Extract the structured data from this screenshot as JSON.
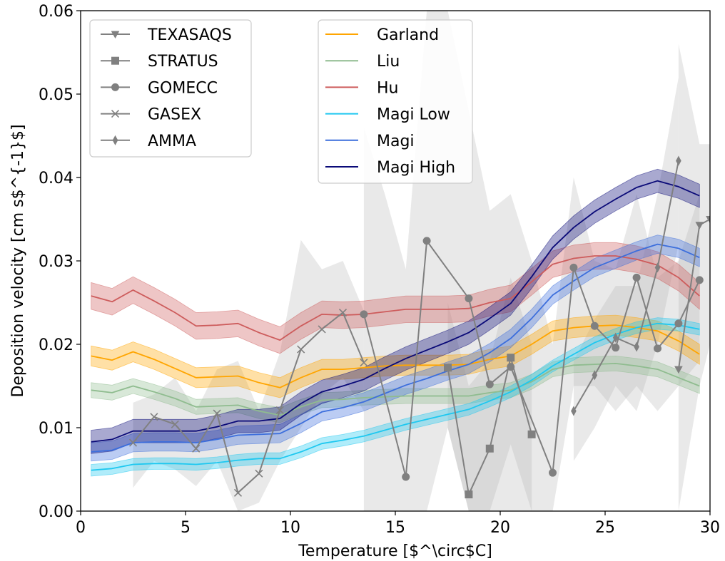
{
  "chart_data": {
    "type": "line",
    "xlabel": "Temperature [$^\\circ$C]",
    "ylabel": "Deposition velocity [cm s$^{-1}$]",
    "xlim": [
      0,
      30
    ],
    "ylim": [
      0,
      0.06
    ],
    "xticks": [
      "0",
      "5",
      "10",
      "15",
      "20",
      "25",
      "30"
    ],
    "yticks": [
      "0.00",
      "0.01",
      "0.02",
      "0.03",
      "0.04",
      "0.05",
      "0.06"
    ],
    "grid": false,
    "legend_placement": [
      "top-left",
      "top-center"
    ],
    "model_series": [
      {
        "name": "Garland",
        "color": "#ffa500",
        "x": [
          0.5,
          1.5,
          2.5,
          3.5,
          4.5,
          5.5,
          6.5,
          7.5,
          8.5,
          9.5,
          10.5,
          11.5,
          12.5,
          13.5,
          14.5,
          15.5,
          16.5,
          17.5,
          18.5,
          19.5,
          20.5,
          21.5,
          22.5,
          23.5,
          24.5,
          25.5,
          26.5,
          27.5,
          28.5,
          29.5
        ],
        "y": [
          0.0186,
          0.0181,
          0.0191,
          0.0182,
          0.0171,
          0.016,
          0.0161,
          0.0162,
          0.0154,
          0.0148,
          0.016,
          0.017,
          0.017,
          0.0172,
          0.0174,
          0.0175,
          0.0175,
          0.0175,
          0.0176,
          0.0182,
          0.0186,
          0.02,
          0.0216,
          0.022,
          0.0222,
          0.0223,
          0.022,
          0.0216,
          0.0204,
          0.0188
        ],
        "band": 0.0012
      },
      {
        "name": "Liu",
        "color": "#8fbc8f",
        "x": [
          0.5,
          1.5,
          2.5,
          3.5,
          4.5,
          5.5,
          6.5,
          7.5,
          8.5,
          9.5,
          10.5,
          11.5,
          12.5,
          13.5,
          14.5,
          15.5,
          16.5,
          17.5,
          18.5,
          19.5,
          20.5,
          21.5,
          22.5,
          23.5,
          24.5,
          25.5,
          26.5,
          27.5,
          28.5,
          29.5
        ],
        "y": [
          0.0145,
          0.0142,
          0.015,
          0.0143,
          0.0135,
          0.0125,
          0.0126,
          0.0127,
          0.012,
          0.0115,
          0.0125,
          0.0133,
          0.0134,
          0.0136,
          0.0137,
          0.0138,
          0.0138,
          0.0138,
          0.0138,
          0.0142,
          0.0145,
          0.0155,
          0.017,
          0.0175,
          0.0176,
          0.0177,
          0.0174,
          0.017,
          0.016,
          0.015
        ],
        "band": 0.0009
      },
      {
        "name": "Hu",
        "color": "#cd5c5c",
        "x": [
          0.5,
          1.5,
          2.5,
          3.5,
          4.5,
          5.5,
          6.5,
          7.5,
          8.5,
          9.5,
          10.5,
          11.5,
          12.5,
          13.5,
          14.5,
          15.5,
          16.5,
          17.5,
          18.5,
          19.5,
          20.5,
          21.5,
          22.5,
          23.5,
          24.5,
          25.5,
          26.5,
          27.5,
          28.5,
          29.5
        ],
        "y": [
          0.0258,
          0.0251,
          0.0265,
          0.0252,
          0.0238,
          0.0222,
          0.0223,
          0.0225,
          0.0214,
          0.0205,
          0.0222,
          0.0236,
          0.0235,
          0.0236,
          0.0239,
          0.0242,
          0.0242,
          0.0242,
          0.0243,
          0.025,
          0.0255,
          0.0275,
          0.0296,
          0.0303,
          0.0306,
          0.0306,
          0.0302,
          0.0295,
          0.028,
          0.0258
        ],
        "band": 0.0016
      },
      {
        "name": "Magi Low",
        "color": "#1ec8f0",
        "x": [
          0.5,
          1.5,
          2.5,
          3.5,
          4.5,
          5.5,
          6.5,
          7.5,
          8.5,
          9.5,
          10.5,
          11.5,
          12.5,
          13.5,
          14.5,
          15.5,
          16.5,
          17.5,
          18.5,
          19.5,
          20.5,
          21.5,
          22.5,
          23.5,
          24.5,
          25.5,
          26.5,
          27.5,
          28.5,
          29.5
        ],
        "y": [
          0.0049,
          0.0051,
          0.0056,
          0.0057,
          0.0057,
          0.0056,
          0.0058,
          0.0061,
          0.0063,
          0.0063,
          0.0071,
          0.0081,
          0.0085,
          0.009,
          0.0097,
          0.0104,
          0.011,
          0.0116,
          0.0122,
          0.0132,
          0.0143,
          0.0157,
          0.0174,
          0.0188,
          0.0202,
          0.0212,
          0.022,
          0.0225,
          0.0223,
          0.0218
        ],
        "band": 0.0007
      },
      {
        "name": "Magi",
        "color": "#3c6edc",
        "x": [
          0.5,
          1.5,
          2.5,
          3.5,
          4.5,
          5.5,
          6.5,
          7.5,
          8.5,
          9.5,
          10.5,
          11.5,
          12.5,
          13.5,
          14.5,
          15.5,
          16.5,
          17.5,
          18.5,
          19.5,
          20.5,
          21.5,
          22.5,
          23.5,
          24.5,
          25.5,
          26.5,
          27.5,
          28.5,
          29.5
        ],
        "y": [
          0.0071,
          0.0073,
          0.0082,
          0.0083,
          0.0083,
          0.0082,
          0.0086,
          0.0091,
          0.0092,
          0.0093,
          0.0105,
          0.0119,
          0.0124,
          0.0131,
          0.0141,
          0.0151,
          0.0159,
          0.0168,
          0.0176,
          0.019,
          0.0207,
          0.0231,
          0.0259,
          0.0276,
          0.0292,
          0.0302,
          0.0312,
          0.032,
          0.0315,
          0.0304
        ],
        "band": 0.0011
      },
      {
        "name": "Magi High",
        "color": "#0a0a78",
        "x": [
          0.5,
          1.5,
          2.5,
          3.5,
          4.5,
          5.5,
          6.5,
          7.5,
          8.5,
          9.5,
          10.5,
          11.5,
          12.5,
          13.5,
          14.5,
          15.5,
          16.5,
          17.5,
          18.5,
          19.5,
          20.5,
          21.5,
          22.5,
          23.5,
          24.5,
          25.5,
          26.5,
          27.5,
          28.5,
          29.5
        ],
        "y": [
          0.0083,
          0.0086,
          0.0096,
          0.0096,
          0.0096,
          0.0096,
          0.0101,
          0.0108,
          0.0108,
          0.0111,
          0.0129,
          0.0143,
          0.015,
          0.0158,
          0.0171,
          0.0183,
          0.0193,
          0.0203,
          0.0214,
          0.0231,
          0.0249,
          0.0281,
          0.0316,
          0.034,
          0.0359,
          0.0374,
          0.0388,
          0.0396,
          0.0389,
          0.0378
        ],
        "band": 0.0014
      }
    ],
    "obs_series": [
      {
        "name": "TEXASAQS",
        "marker": "triangle-down",
        "color": "#808080",
        "x": [
          28.5,
          29.5,
          30.0
        ],
        "y": [
          0.017,
          0.0343,
          0.035
        ],
        "shade": [
          [
            28.5,
            0.0,
            0.056
          ],
          [
            29.5,
            0.015,
            0.044
          ],
          [
            30.0,
            0.02,
            0.044
          ]
        ]
      },
      {
        "name": "STRATUS",
        "marker": "square",
        "color": "#808080",
        "x": [
          17.5,
          18.5,
          19.5,
          20.5,
          21.5
        ],
        "y": [
          0.0172,
          0.002,
          0.0075,
          0.0184,
          0.0092
        ],
        "shade": [
          [
            17.5,
            0.01,
            0.025
          ],
          [
            18.5,
            0.0,
            0.015
          ],
          [
            19.5,
            0.0,
            0.018
          ],
          [
            20.5,
            0.008,
            0.028
          ],
          [
            21.5,
            0.0,
            0.02
          ]
        ]
      },
      {
        "name": "GOMECC",
        "marker": "circle",
        "color": "#808080",
        "x": [
          13.5,
          15.5,
          16.5,
          18.5,
          19.5,
          20.5,
          22.5,
          23.5,
          24.5,
          25.5,
          26.5,
          27.5,
          28.5,
          29.5
        ],
        "y": [
          0.0236,
          0.0041,
          0.0324,
          0.0255,
          0.0152,
          0.0173,
          0.0046,
          0.0292,
          0.0222,
          0.0196,
          0.028,
          0.0195,
          0.0225,
          0.0277
        ],
        "shade": [
          [
            13.5,
            0.0,
            0.046
          ],
          [
            14.5,
            0.0,
            0.038
          ],
          [
            15.5,
            0.0,
            0.029
          ],
          [
            16.5,
            0.0,
            0.06
          ],
          [
            17.5,
            0.01,
            0.06
          ],
          [
            18.5,
            0.0,
            0.048
          ],
          [
            19.5,
            0.0,
            0.036
          ],
          [
            20.5,
            0.0,
            0.038
          ],
          [
            21.5,
            0.0,
            0.03
          ],
          [
            22.5,
            0.0,
            0.02
          ],
          [
            23.5,
            0.015,
            0.04
          ],
          [
            24.5,
            0.015,
            0.03
          ],
          [
            25.5,
            0.012,
            0.029
          ],
          [
            26.5,
            0.015,
            0.038
          ],
          [
            27.5,
            0.012,
            0.028
          ],
          [
            28.5,
            0.015,
            0.03
          ],
          [
            29.5,
            0.018,
            0.038
          ]
        ]
      },
      {
        "name": "GASEX",
        "marker": "x",
        "color": "#808080",
        "x": [
          2.5,
          3.5,
          4.5,
          5.5,
          6.5,
          7.5,
          8.5,
          9.5,
          10.5,
          11.5,
          12.5,
          13.5
        ],
        "y": [
          0.0082,
          0.0113,
          0.0104,
          0.0075,
          0.0117,
          0.0022,
          0.0045,
          0.0121,
          0.0194,
          0.0218,
          0.0238,
          0.0178
        ],
        "shade": [
          [
            2.5,
            0.0028,
            0.013
          ],
          [
            3.5,
            0.006,
            0.014
          ],
          [
            4.5,
            0.005,
            0.016
          ],
          [
            5.5,
            0.003,
            0.012
          ],
          [
            6.5,
            0.006,
            0.017
          ],
          [
            7.5,
            0.0,
            0.018
          ],
          [
            8.5,
            0.001,
            0.012
          ],
          [
            9.5,
            0.006,
            0.019
          ],
          [
            10.5,
            0.01,
            0.0325
          ],
          [
            11.5,
            0.014,
            0.029
          ],
          [
            12.5,
            0.016,
            0.03
          ],
          [
            13.5,
            0.012,
            0.024
          ]
        ]
      },
      {
        "name": "AMMA",
        "marker": "diamond",
        "color": "#808080",
        "x": [
          23.5,
          24.5,
          25.5,
          26.5,
          27.5,
          28.5
        ],
        "y": [
          0.012,
          0.0163,
          0.0208,
          0.0197,
          0.0292,
          0.042
        ],
        "shade": [
          [
            23.5,
            0.006,
            0.018
          ],
          [
            24.5,
            0.01,
            0.023
          ],
          [
            25.5,
            0.015,
            0.027
          ],
          [
            26.5,
            0.012,
            0.027
          ],
          [
            27.5,
            0.02,
            0.038
          ],
          [
            28.5,
            0.032,
            0.052
          ]
        ]
      }
    ]
  }
}
